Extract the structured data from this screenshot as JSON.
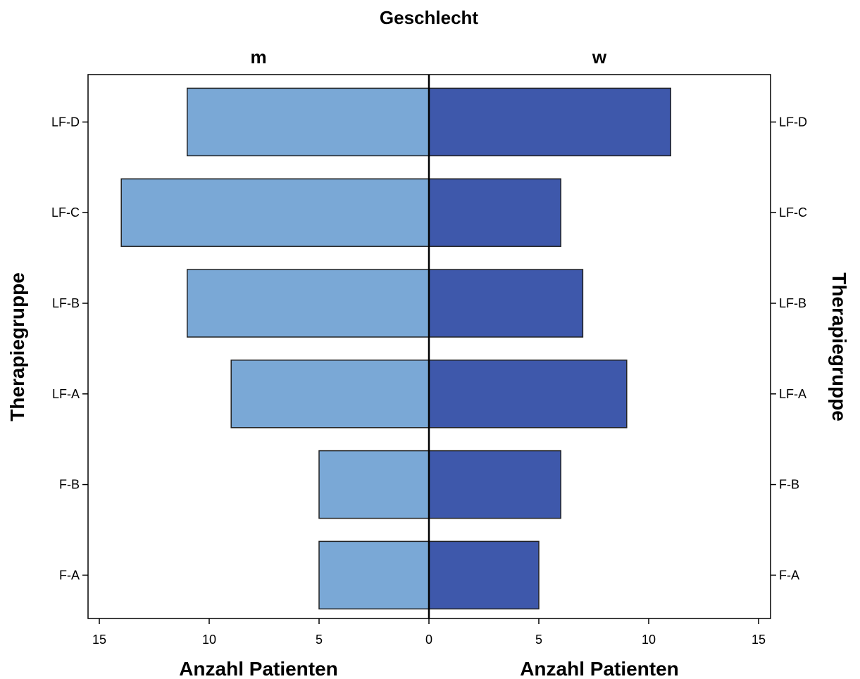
{
  "chart_data": {
    "type": "bar",
    "orientation": "horizontal-population-pyramid",
    "title": "Geschlecht",
    "categories": [
      "LF-D",
      "LF-C",
      "LF-B",
      "LF-A",
      "F-B",
      "F-A"
    ],
    "series": [
      {
        "name": "m",
        "values": [
          11,
          14,
          11,
          9,
          5,
          5
        ],
        "color": "#7aa8d6"
      },
      {
        "name": "w",
        "values": [
          11,
          6,
          7,
          9,
          6,
          5
        ],
        "color": "#3e58ab"
      }
    ],
    "xlabel_left": "Anzahl Patienten",
    "xlabel_right": "Anzahl Patienten",
    "ylabel_left": "Therapiegruppe",
    "ylabel_right": "Therapiegruppe",
    "xlim": [
      0,
      15
    ],
    "x_ticks_left": [
      15,
      10,
      5,
      0
    ],
    "x_ticks_right": [
      5,
      10,
      15
    ],
    "grid": false,
    "legend": "none"
  }
}
